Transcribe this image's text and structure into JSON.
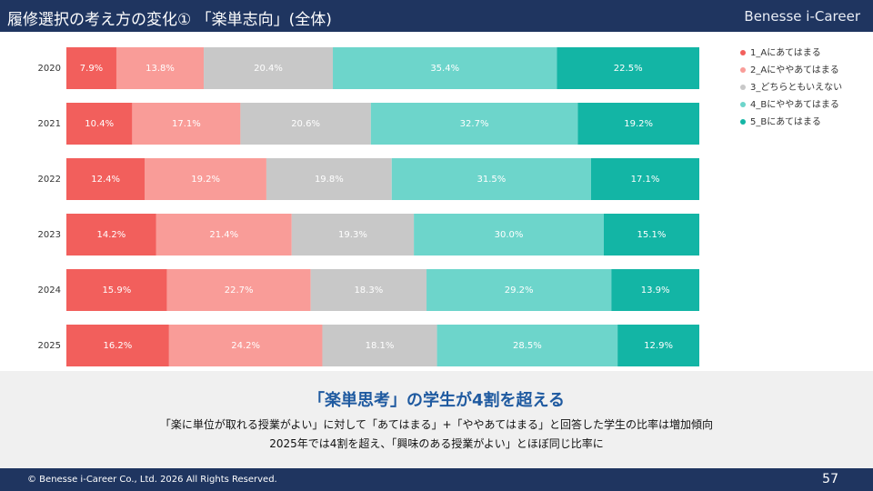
{
  "header": {
    "title": "履修選択の考え方の変化① 「楽単志向」(全体)",
    "brand": "Benesse i-Career"
  },
  "chart_data": {
    "type": "stacked-bar-horizontal",
    "categories": [
      "2020",
      "2021",
      "2022",
      "2023",
      "2024",
      "2025"
    ],
    "series": [
      {
        "name": "1_Aにあてはまる",
        "color": "#f25f5c",
        "values": [
          7.9,
          10.4,
          12.4,
          14.2,
          15.9,
          16.2
        ],
        "value_labels": [
          "7.9%",
          "10.4%",
          "12.4%",
          "14.2%",
          "15.9%",
          "16.2%"
        ]
      },
      {
        "name": "2_Aにややあてはまる",
        "color": "#f99c98",
        "values": [
          13.8,
          17.1,
          19.2,
          21.4,
          22.7,
          24.2
        ],
        "value_labels": [
          "13.8%",
          "17.1%",
          "19.2%",
          "21.4%",
          "22.7%",
          "24.2%"
        ]
      },
      {
        "name": "3_どちらともいえない",
        "color": "#c8c8c8",
        "values": [
          20.4,
          20.6,
          19.8,
          19.3,
          18.3,
          18.1
        ],
        "value_labels": [
          "20.4%",
          "20.6%",
          "19.8%",
          "19.3%",
          "18.3%",
          "18.1%"
        ]
      },
      {
        "name": "4_Bにややあてはまる",
        "color": "#6dd5cb",
        "values": [
          35.4,
          32.7,
          31.5,
          30.0,
          29.2,
          28.5
        ],
        "value_labels": [
          "35.4%",
          "32.7%",
          "31.5%",
          "30.0%",
          "29.2%",
          "28.5%"
        ]
      },
      {
        "name": "5_Bにあてはまる",
        "color": "#13b5a5",
        "values": [
          22.5,
          19.2,
          17.1,
          15.1,
          13.9,
          12.9
        ],
        "value_labels": [
          "22.5%",
          "19.2%",
          "17.1%",
          "15.1%",
          "13.9%",
          "12.9%"
        ]
      }
    ],
    "legend": "top-right"
  },
  "summary": {
    "heading": "「楽単思考」の学生が4割を超える",
    "lines": [
      "「楽に単位が取れる授業がよい」に対して「あてはまる」+「ややあてはまる」と回答した学生の比率は増加傾向",
      "2025年では4割を超え、「興味のある授業がよい」とほぼ同じ比率に"
    ]
  },
  "footer": {
    "copyright": "© Benesse i-Career Co., Ltd. 2026 All Rights Reserved.",
    "page": "57"
  }
}
